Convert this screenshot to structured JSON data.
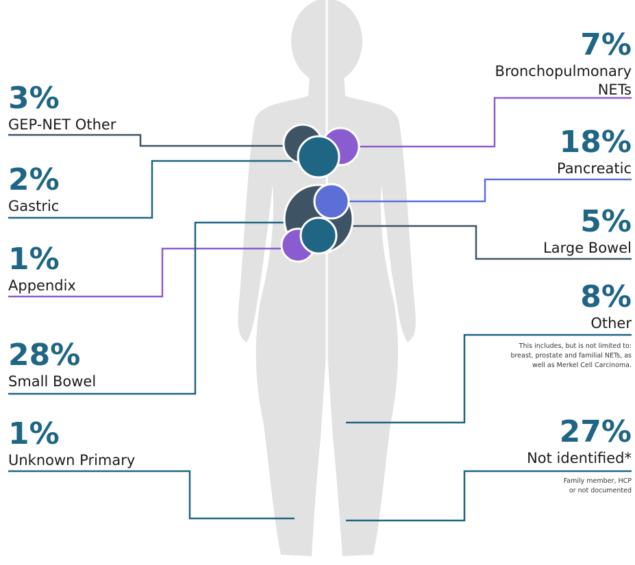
{
  "left": [
    {
      "percent": "3%",
      "label": [
        "GEP-NET Other"
      ]
    },
    {
      "percent": "2%",
      "label": [
        "Gastric"
      ]
    },
    {
      "percent": "1%",
      "label": [
        "Appendix"
      ]
    },
    {
      "percent": "28%",
      "label": [
        "Small Bowel"
      ]
    },
    {
      "percent": "1%",
      "label": [
        "Unknown Primary"
      ]
    }
  ],
  "right": [
    {
      "percent": "7%",
      "label": [
        "Bronchopulmonary",
        "NETs"
      ]
    },
    {
      "percent": "18%",
      "label": [
        "Pancreatic"
      ]
    },
    {
      "percent": "5%",
      "label": [
        "Large Bowel"
      ]
    },
    {
      "percent": "8%",
      "label": [
        "Other"
      ],
      "note": [
        "This includes, but is not limited to:",
        "breast, prostate and familial NETs, as",
        "well as Merkel Cell Carcinoma."
      ]
    },
    {
      "percent": "27%",
      "label": [
        "Not identified*"
      ],
      "note": [
        "Family member, HCP",
        "or not documented"
      ]
    }
  ]
}
